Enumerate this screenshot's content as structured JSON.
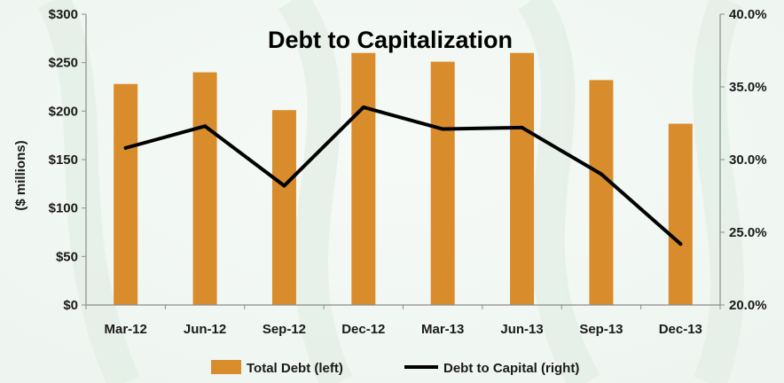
{
  "chart_data": {
    "type": "bar",
    "title": "Debt to Capitalization",
    "xlabel": "",
    "ylabel": "($ millions)",
    "y2label": "",
    "categories": [
      "Mar-12",
      "Jun-12",
      "Sep-12",
      "Dec-12",
      "Mar-13",
      "Jun-13",
      "Sep-13",
      "Dec-13"
    ],
    "ylim": [
      0,
      300
    ],
    "y2lim": [
      0.2,
      0.4
    ],
    "yticks": [
      "$0",
      "$50",
      "$100",
      "$150",
      "$200",
      "$250",
      "$300"
    ],
    "y2ticks": [
      "20.0%",
      "25.0%",
      "30.0%",
      "35.0%",
      "40.0%"
    ],
    "grid": false,
    "legend_position": "bottom",
    "series": [
      {
        "name": "Total Debt (left)",
        "type": "bar",
        "axis": "left",
        "color": "#D98C2B",
        "values": [
          228,
          240,
          201,
          260,
          251,
          260,
          232,
          187
        ]
      },
      {
        "name": "Debt to Capital (right)",
        "type": "line",
        "axis": "right",
        "color": "#000000",
        "values": [
          0.308,
          0.323,
          0.282,
          0.336,
          0.321,
          0.322,
          0.29,
          0.242
        ]
      }
    ]
  }
}
